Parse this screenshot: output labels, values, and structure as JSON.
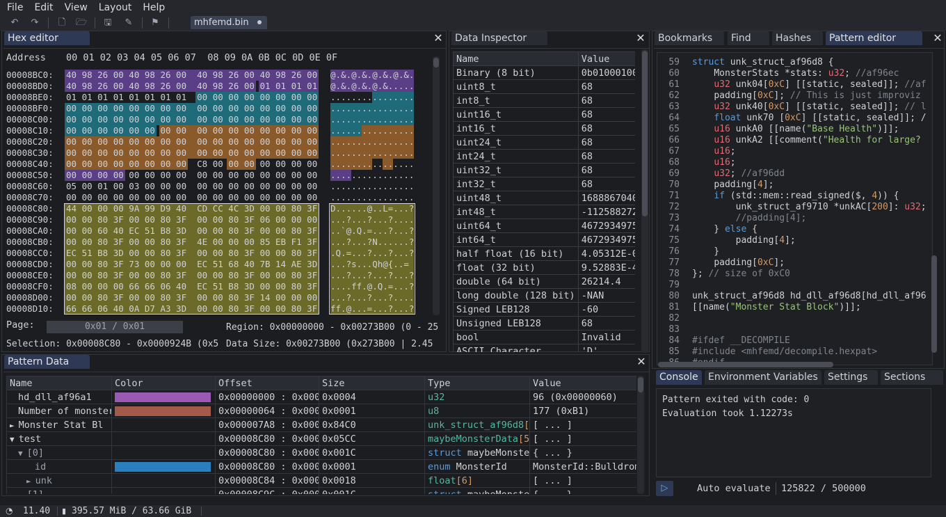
{
  "menu": [
    "File",
    "Edit",
    "View",
    "Layout",
    "Help"
  ],
  "file_tab": "mhfemd.bin",
  "hex": {
    "tab": "Hex editor",
    "header_label": "Address",
    "columns": "00 01 02 03 04 05 06 07  08 09 0A 0B 0C 0D 0E 0F",
    "rows": [
      {
        "a": "00008BC0:",
        "h": "40 98 26 00 40 98 26 00  40 98 26 00 40 98 26 00",
        "t": "@.&.@.&.@.&.@.&."
      },
      {
        "a": "00008BD0:",
        "h": "40 98 26 00 40 98 26 00  40 98 26 00 01 01 01 01",
        "t": "@.&.@.&.@.&....."
      },
      {
        "a": "00008BE0:",
        "h": "01 01 01 01 01 01 01 01  00 00 00 00 00 00 00 00",
        "t": "................"
      },
      {
        "a": "00008BF0:",
        "h": "00 00 00 00 00 00 00 00  00 00 00 00 00 00 00 00",
        "t": "................"
      },
      {
        "a": "00008C00:",
        "h": "00 00 00 00 00 00 00 00  00 00 00 00 00 00 00 00",
        "t": "................"
      },
      {
        "a": "00008C10:",
        "h": "00 00 00 00 00 00 00 00  00 00 00 00 00 00 00 00",
        "t": "................"
      },
      {
        "a": "00008C20:",
        "h": "00 00 00 00 00 00 00 00  00 00 00 00 00 00 00 00",
        "t": "................"
      },
      {
        "a": "00008C30:",
        "h": "00 00 00 00 00 00 00 00  00 00 00 00 00 00 00 00",
        "t": "................"
      },
      {
        "a": "00008C40:",
        "h": "00 00 00 00 00 00 00 00  C8 00 00 00 00 00 00 00",
        "t": "................"
      },
      {
        "a": "00008C50:",
        "h": "00 00 00 00 00 00 00 00  00 00 00 00 00 00 00 00",
        "t": "................"
      },
      {
        "a": "00008C60:",
        "h": "05 00 01 00 03 00 00 00  00 00 00 00 00 00 00 00",
        "t": "................"
      },
      {
        "a": "00008C70:",
        "h": "00 00 00 00 00 00 00 00  00 00 00 00 00 00 00 00",
        "t": "................"
      },
      {
        "a": "00008C80:",
        "h": "44 00 00 00 9A 99 D9 40  CD CC 4C 3D 00 00 80 3F",
        "t": "D......@..L=...?"
      },
      {
        "a": "00008C90:",
        "h": "00 00 80 3F 00 00 80 3F  00 00 80 3F 06 00 00 00",
        "t": "...?...?...?...."
      },
      {
        "a": "00008CA0:",
        "h": "00 00 60 40 EC 51 B8 3D  00 00 80 3F 00 00 80 3F",
        "t": "..`@.Q.=...?...?"
      },
      {
        "a": "00008CB0:",
        "h": "00 00 80 3F 00 00 80 3F  4E 00 00 00 85 EB F1 3F",
        "t": "...?...?N......?"
      },
      {
        "a": "00008CC0:",
        "h": "EC 51 B8 3D 00 00 80 3F  00 00 80 3F 00 00 80 3F",
        "t": ".Q.=...?...?...?"
      },
      {
        "a": "00008CD0:",
        "h": "00 00 80 3F 73 00 00 00  EC 51 68 40 7B 14 AE 3D",
        "t": "...?s...Qh@{..="
      },
      {
        "a": "00008CE0:",
        "h": "00 00 80 3F 00 00 80 3F  00 00 80 3F 00 00 80 3F",
        "t": "...?...?...?...?"
      },
      {
        "a": "00008CF0:",
        "h": "08 00 00 00 66 66 06 40  EC 51 B8 3D 00 00 80 3F",
        "t": "....ff.@.Q.=...?"
      },
      {
        "a": "00008D00:",
        "h": "00 00 80 3F 00 00 80 3F  00 00 80 3F 14 00 00 00",
        "t": "...?...?...?...."
      },
      {
        "a": "00008D10:",
        "h": "66 66 06 40 0A D7 A3 3D  00 00 80 3F 00 00 80 3F",
        "t": "ff.@...=...?...?"
      }
    ],
    "page_label": "Page:",
    "page_value": "0x01 / 0x01",
    "region": "Region: 0x00000000 - 0x00273B00 (0 - 25",
    "selection": "Selection: 0x00008C80 - 0x0000924B (0x5",
    "data_size": "Data Size: 0x00273B00 (0x273B00 | 2.45"
  },
  "inspector": {
    "tab": "Data Inspector",
    "head": [
      "Name",
      "Value"
    ],
    "rows": [
      [
        "Binary (8 bit)",
        "0b01000100"
      ],
      [
        "uint8_t",
        "68"
      ],
      [
        "int8_t",
        "68"
      ],
      [
        "uint16_t",
        "68"
      ],
      [
        "int16_t",
        "68"
      ],
      [
        "uint24_t",
        "68"
      ],
      [
        "int24_t",
        "68"
      ],
      [
        "uint32_t",
        "68"
      ],
      [
        "int32_t",
        "68"
      ],
      [
        "uint48_t",
        "1688867040"
      ],
      [
        "int48_t",
        "-112588272"
      ],
      [
        "uint64_t",
        "4672934975"
      ],
      [
        "int64_t",
        "4672934975"
      ],
      [
        "half float (16 bit)",
        "4.05312E-0"
      ],
      [
        "float (32 bit)",
        "9.52883E-4"
      ],
      [
        "double (64 bit)",
        "26214.4"
      ],
      [
        "long double (128 bit)",
        "-NAN"
      ],
      [
        "Signed LEB128",
        "-60"
      ],
      [
        "Unsigned LEB128",
        "68"
      ],
      [
        "bool",
        "Invalid"
      ],
      [
        "ASCII Character",
        "'D'"
      ]
    ]
  },
  "right_tabs": [
    "Bookmarks",
    "Find",
    "Hashes",
    "Pattern editor"
  ],
  "code": {
    "start": 59,
    "lines": [
      "struct unk_struct_af96d8 {",
      "    MonsterStats *stats: u32; //af96ec",
      "    u32 unk04[0xC] [[static, sealed]]; //af",
      "    padding[0xC]; // This is just improviz",
      "    u32 unk40[0xC] [[static, sealed]]; // l",
      "    float unk70 [0xC] [[static, sealed]]; /",
      "    u16 unkA0 [[name(\"Base Health\")]];",
      "    u16 unkA2 [[comment(\"Health for large?",
      "    u16;",
      "    u16;",
      "    u32; //af96dd",
      "    padding[4];",
      "    if (std::mem::read_signed($, 4)) {",
      "        unk_struct_af9710 *unkAC[200]: u32;",
      "        //padding[4];",
      "    } else {",
      "        padding[4];",
      "    }",
      "    padding[0xC];",
      "}; // size of 0xC0",
      "",
      "unk_struct_af96d8 hd_dll_af96d8[hd_dll_af96",
      "[[name(\"Monster Stat Block\")]];",
      "",
      "",
      "#ifdef __DECOMPILE",
      "#include <mhfemd/decompile.hexpat>",
      "#endif"
    ]
  },
  "console": {
    "tabs": [
      "Console",
      "Environment Variables",
      "Settings",
      "Sections"
    ],
    "lines": [
      "Pattern exited with code: 0",
      "Evaluation took 1.12273s"
    ],
    "auto_eval": "Auto evaluate",
    "counter": "125822 / 500000"
  },
  "pattern": {
    "tab": "Pattern Data",
    "head": [
      "Name",
      "Color",
      "Offset",
      "Size",
      "Type",
      "Value"
    ],
    "rows": [
      {
        "n": "hd_dll_af96a1",
        "c": "#9b59b6",
        "o": "0x00000000 : 0x000",
        "s": "0x0004",
        "t1": "u32",
        "t2": "",
        "v": "96 (0x00000060)",
        "ind": 0,
        "arrow": ""
      },
      {
        "n": "Number of monster",
        "c": "#a35a4a",
        "o": "0x00000064 : 0x000",
        "s": "0x0001",
        "t1": "u8",
        "t2": "",
        "v": "177 (0xB1)",
        "ind": 0,
        "arrow": ""
      },
      {
        "n": "Monster Stat Bl",
        "c": "",
        "o": "0x000007A8 : 0x000",
        "s": "0x84C0",
        "t1": "unk_struct_af96d8",
        "t2": "[",
        "v": "[ ... ]",
        "ind": 0,
        "arrow": "►"
      },
      {
        "n": "test",
        "c": "",
        "o": "0x00008C80 : 0x000",
        "s": "0x05CC",
        "t1": "maybeMonsterData",
        "t2": "[5",
        "v": "[ ... ]",
        "ind": 0,
        "arrow": "▼"
      },
      {
        "n": "[0]",
        "c": "",
        "o": "0x00008C80 : 0x000",
        "s": "0x001C",
        "t1": "struct",
        "t2": " maybeMonste",
        "v": "{ ... }",
        "ind": 1,
        "arrow": "▼"
      },
      {
        "n": "id",
        "c": "#2a7fbf",
        "o": "0x00008C80 : 0x000",
        "s": "0x0001",
        "t1": "enum",
        "t2": " MonsterId",
        "v": "MonsterId::Bulldrom",
        "ind": 2,
        "arrow": ""
      },
      {
        "n": "unk",
        "c": "",
        "o": "0x00008C84 : 0x000",
        "s": "0x0018",
        "t1": "float",
        "t2": "[6]",
        "v": "[ ... ]",
        "ind": 2,
        "arrow": "►"
      },
      {
        "n": "[1]",
        "c": "",
        "o": "0x00008C9C : 0x000",
        "s": "0x001C",
        "t1": "struct",
        "t2": " maybeMonste",
        "v": "{ ... }",
        "ind": 1,
        "arrow": "►"
      }
    ]
  },
  "status": {
    "fps": "11.40",
    "mem": "395.57 MiB / 63.66 GiB"
  }
}
